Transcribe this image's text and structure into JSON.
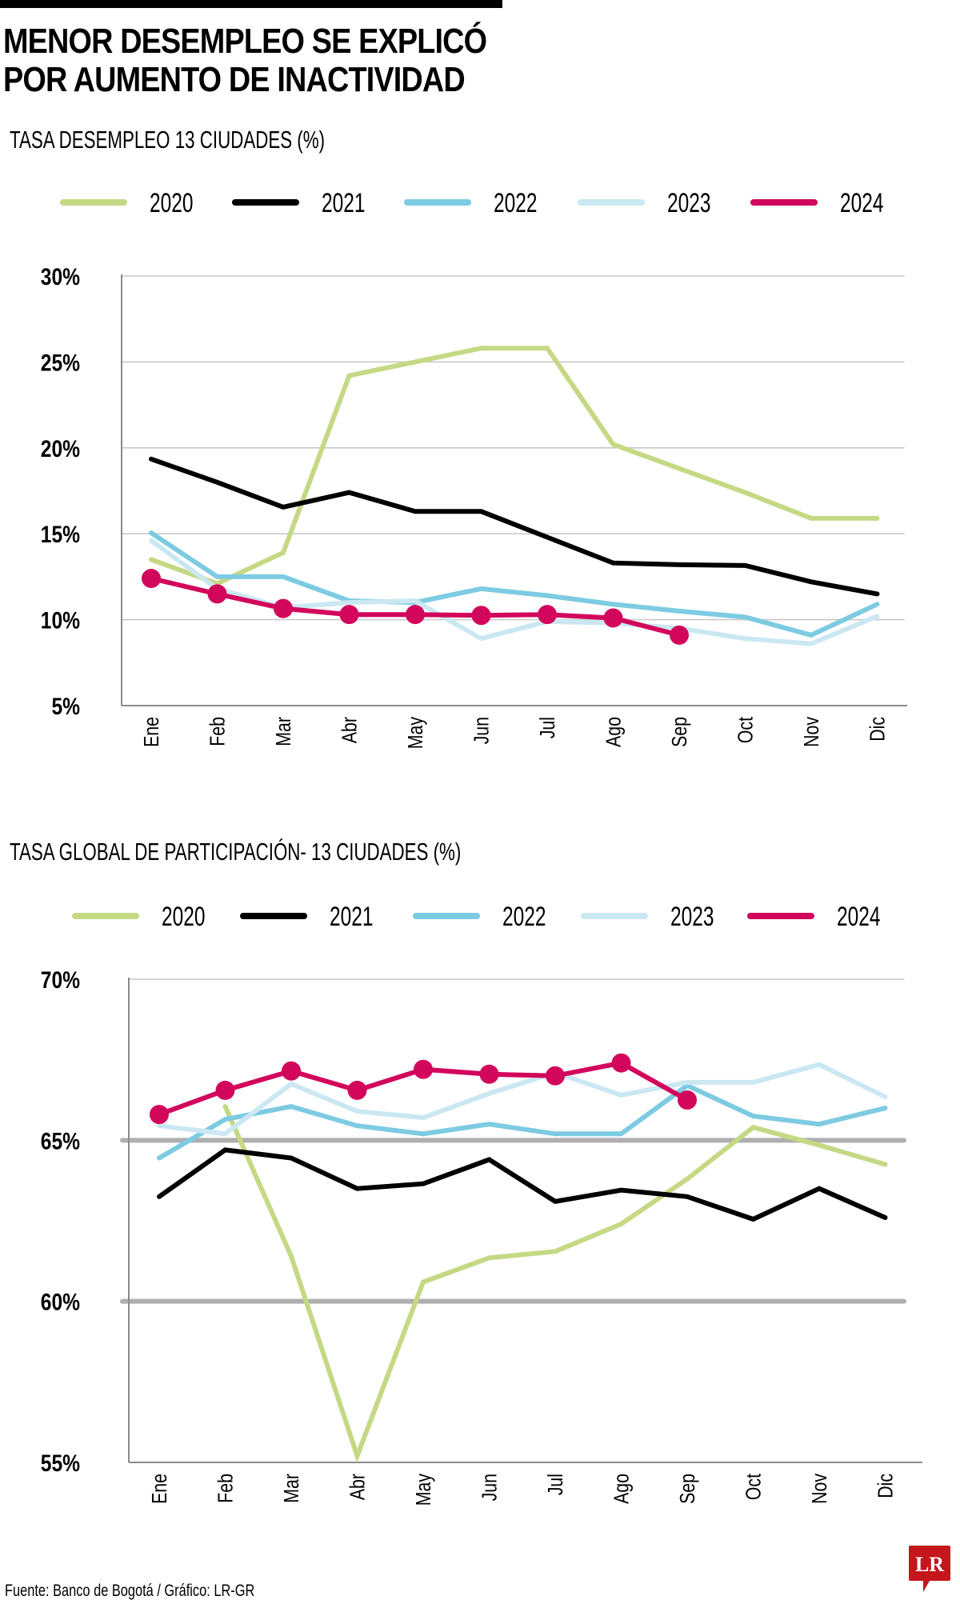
{
  "header": {
    "title_line1": "MENOR DESEMPLEO SE EXPLICÓ",
    "title_line2": "POR AUMENTO DE INACTIVIDAD"
  },
  "legend": [
    {
      "label": "2020",
      "color": "#c5d985"
    },
    {
      "label": "2021",
      "color": "#000000"
    },
    {
      "label": "2022",
      "color": "#7dcbe2"
    },
    {
      "label": "2023",
      "color": "#cbe8f2"
    },
    {
      "label": "2024",
      "color": "#d2075c"
    }
  ],
  "footer": {
    "source": "Fuente: Banco de Bogotá / Gráfico: LR-GR",
    "logo_text": "LR",
    "logo_color": "#c4161c"
  },
  "chart_data": [
    {
      "type": "line",
      "title": "TASA DESEMPLEO 13 CIUDADES (%)",
      "xlabel": "",
      "ylabel": "",
      "categories": [
        "Ene",
        "Feb",
        "Mar",
        "Abr",
        "May",
        "Jun",
        "Jul",
        "Ago",
        "Sep",
        "Oct",
        "Nov",
        "Dic"
      ],
      "ylim": [
        5,
        30
      ],
      "yticks": [
        30,
        25,
        20,
        15,
        10,
        5
      ],
      "ytick_labels": [
        "30%",
        "25%",
        "20%",
        "15%",
        "10%",
        "5%"
      ],
      "grid": true,
      "legend_position": "top",
      "series": [
        {
          "name": "2020",
          "color": "#c5d985",
          "markers": false,
          "values": [
            13.5,
            12.1,
            13.9,
            24.2,
            25.0,
            25.8,
            25.8,
            20.2,
            18.8,
            17.4,
            15.9,
            15.9
          ]
        },
        {
          "name": "2021",
          "color": "#000000",
          "markers": false,
          "values": [
            19.35,
            18.0,
            16.55,
            17.4,
            16.3,
            16.3,
            14.8,
            13.3,
            13.2,
            13.15,
            12.2,
            11.5
          ]
        },
        {
          "name": "2022",
          "color": "#7dcbe2",
          "markers": false,
          "values": [
            15.05,
            12.5,
            12.5,
            11.1,
            11.0,
            11.8,
            11.4,
            10.9,
            10.5,
            10.15,
            9.1,
            10.9
          ]
        },
        {
          "name": "2023",
          "color": "#cbe8f2",
          "markers": false,
          "values": [
            14.6,
            11.8,
            10.7,
            11.0,
            11.1,
            8.9,
            9.9,
            9.8,
            9.5,
            8.9,
            8.6,
            10.2
          ]
        },
        {
          "name": "2024",
          "color": "#d2075c",
          "markers": true,
          "values": [
            12.4,
            11.5,
            10.65,
            10.3,
            10.3,
            10.25,
            10.3,
            10.1,
            9.1
          ]
        }
      ]
    },
    {
      "type": "line",
      "title": "TASA GLOBAL DE PARTICIPACIÓN- 13 CIUDADES (%)",
      "xlabel": "",
      "ylabel": "",
      "categories": [
        "Ene",
        "Feb",
        "Mar",
        "Abr",
        "May",
        "Jun",
        "Jul",
        "Ago",
        "Sep",
        "Oct",
        "Nov",
        "Dic"
      ],
      "ylim": [
        55,
        70
      ],
      "yticks": [
        70,
        65,
        60,
        55
      ],
      "ytick_labels": [
        "70%",
        "65%",
        "60%",
        "55%"
      ],
      "grid": true,
      "legend_position": "top",
      "series": [
        {
          "name": "2020",
          "color": "#c5d985",
          "markers": false,
          "start_index": 1,
          "values": [
            null,
            66.05,
            61.4,
            55.2,
            60.6,
            61.35,
            61.55,
            62.4,
            63.8,
            65.4,
            64.85,
            64.25
          ]
        },
        {
          "name": "2021",
          "color": "#000000",
          "markers": false,
          "values": [
            63.25,
            64.7,
            64.45,
            63.5,
            63.65,
            64.4,
            63.1,
            63.45,
            63.25,
            62.55,
            63.5,
            62.6
          ]
        },
        {
          "name": "2022",
          "color": "#7dcbe2",
          "markers": false,
          "values": [
            64.45,
            65.65,
            66.05,
            65.45,
            65.2,
            65.5,
            65.2,
            65.2,
            66.7,
            65.75,
            65.5,
            66.0
          ]
        },
        {
          "name": "2023",
          "color": "#cbe8f2",
          "markers": false,
          "values": [
            65.45,
            65.2,
            66.75,
            65.9,
            65.7,
            66.45,
            67.1,
            66.4,
            66.8,
            66.8,
            67.35,
            66.35
          ]
        },
        {
          "name": "2024",
          "color": "#d2075c",
          "markers": true,
          "values": [
            65.8,
            66.55,
            67.15,
            66.55,
            67.2,
            67.05,
            67.0,
            67.4,
            66.25
          ]
        }
      ]
    }
  ]
}
